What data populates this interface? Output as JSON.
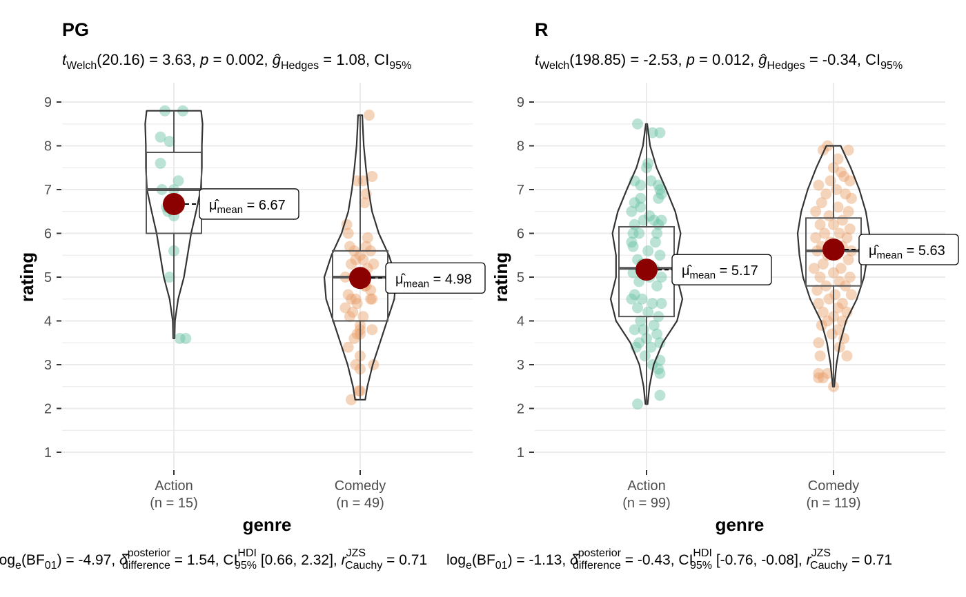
{
  "colors": {
    "action": "#66c2a5",
    "comedy": "#e8a06a",
    "mean": "#8b0000",
    "grid": "#ebebeb",
    "outline": "#333333"
  },
  "chart_data": [
    {
      "type": "violin-box-jitter",
      "title": "PG",
      "subtitle": {
        "stat": "Welch",
        "df": "(20.16) = 3.63, ",
        "p": " = 0.002, ",
        "g": "Hedges",
        "g_val": " = 1.08, CI",
        "ci": "95%"
      },
      "xlabel": "genre",
      "ylabel": "rating",
      "ylim": [
        1,
        9
      ],
      "yticks": [
        "1",
        "2",
        "3",
        "4",
        "5",
        "6",
        "7",
        "8",
        "9"
      ],
      "caption": {
        "lead": "log",
        "e": "e",
        "bf": "(BF",
        "bf_sub": "01",
        "bf_val": ") = -4.97, ",
        "post": "posterior",
        "diff": "difference",
        "d_val": " = 1.54, CI",
        "hdi": "HDI",
        "ci": "95%",
        "ci_val": " [0.66, 2.32], ",
        "r": "r",
        "jzs": "JZS",
        "cauchy": "Cauchy",
        "r_val": " = 0.71"
      },
      "categories": [
        "Action",
        "Comedy"
      ],
      "counts": [
        "(n = 15)",
        "(n = 49)"
      ],
      "series": [
        {
          "stats": {
            "min": 3.6,
            "q1": 6.0,
            "median": 7.0,
            "q3": 7.85,
            "max": 8.8,
            "mean": 6.67
          },
          "mean_label": " = 6.67",
          "violin": {
            "y": [
              3.6,
              4.0,
              4.5,
              5.0,
              5.5,
              6.0,
              6.5,
              7.0,
              7.5,
              8.0,
              8.5,
              8.8
            ],
            "w": [
              0.02,
              0.03,
              0.12,
              0.28,
              0.38,
              0.48,
              0.62,
              0.75,
              0.78,
              0.78,
              0.8,
              0.76
            ]
          },
          "points": [
            [
              -0.06,
              8.8
            ],
            [
              0.06,
              8.8
            ],
            [
              -0.09,
              8.2
            ],
            [
              -0.03,
              8.1
            ],
            [
              -0.09,
              7.6
            ],
            [
              0.03,
              7.2
            ],
            [
              -0.08,
              7.0
            ],
            [
              0.0,
              7.0
            ],
            [
              -0.05,
              6.6
            ],
            [
              -0.04,
              6.5
            ],
            [
              0.0,
              6.4
            ],
            [
              0.0,
              5.6
            ],
            [
              -0.03,
              5.0
            ],
            [
              0.04,
              3.6
            ],
            [
              0.08,
              3.6
            ]
          ]
        },
        {
          "stats": {
            "min": 2.2,
            "q1": 4.0,
            "median": 5.0,
            "q3": 5.6,
            "max": 8.7,
            "mean": 4.98
          },
          "mean_label": " = 4.98",
          "violin": {
            "y": [
              2.2,
              2.5,
              3.0,
              3.5,
              4.0,
              4.5,
              5.0,
              5.5,
              6.0,
              6.5,
              7.0,
              7.5,
              8.0,
              8.5,
              8.7
            ],
            "w": [
              0.14,
              0.2,
              0.35,
              0.55,
              0.75,
              0.95,
              1.0,
              0.8,
              0.52,
              0.33,
              0.23,
              0.16,
              0.1,
              0.07,
              0.06
            ]
          },
          "points": [
            [
              0.06,
              8.7
            ],
            [
              0.08,
              7.3
            ],
            [
              -0.02,
              7.2
            ],
            [
              0.02,
              7.2
            ],
            [
              0.04,
              6.9
            ],
            [
              0.03,
              6.7
            ],
            [
              -0.09,
              6.2
            ],
            [
              -0.08,
              6.0
            ],
            [
              0.05,
              5.9
            ],
            [
              -0.07,
              5.7
            ],
            [
              0.04,
              5.7
            ],
            [
              0.07,
              5.6
            ],
            [
              -0.04,
              5.6
            ],
            [
              0.0,
              5.5
            ],
            [
              -0.03,
              5.4
            ],
            [
              0.02,
              5.4
            ],
            [
              -0.06,
              5.3
            ],
            [
              0.05,
              5.2
            ],
            [
              0.09,
              5.3
            ],
            [
              -0.1,
              5.0
            ],
            [
              -0.05,
              5.0
            ],
            [
              -0.01,
              4.9
            ],
            [
              -0.08,
              4.6
            ],
            [
              0.03,
              4.8
            ],
            [
              0.07,
              4.7
            ],
            [
              -0.06,
              4.5
            ],
            [
              -0.03,
              4.5
            ],
            [
              0.07,
              4.5
            ],
            [
              0.08,
              4.5
            ],
            [
              -0.1,
              4.3
            ],
            [
              -0.07,
              4.1
            ],
            [
              -0.05,
              4.2
            ],
            [
              0.02,
              4.1
            ],
            [
              0.0,
              3.9
            ],
            [
              0.0,
              3.8
            ],
            [
              0.08,
              3.8
            ],
            [
              -0.02,
              3.7
            ],
            [
              0.0,
              3.7
            ],
            [
              -0.04,
              3.6
            ],
            [
              -0.08,
              3.4
            ],
            [
              0.0,
              3.2
            ],
            [
              -0.03,
              3.0
            ],
            [
              0.09,
              3.0
            ],
            [
              0.0,
              2.9
            ],
            [
              -0.01,
              2.4
            ],
            [
              0.0,
              2.4
            ],
            [
              -0.06,
              2.2
            ],
            [
              0.04,
              4.8
            ],
            [
              -0.02,
              4.4
            ]
          ]
        }
      ]
    },
    {
      "type": "violin-box-jitter",
      "title": "R",
      "subtitle": {
        "stat": "Welch",
        "df": "(198.85) = -2.53, ",
        "p": " = 0.012, ",
        "g": "Hedges",
        "g_val": " = -0.34, CI",
        "ci": "95%"
      },
      "xlabel": "genre",
      "ylabel": "rating",
      "ylim": [
        1,
        9
      ],
      "yticks": [
        "1",
        "2",
        "3",
        "4",
        "5",
        "6",
        "7",
        "8",
        "9"
      ],
      "caption": {
        "lead": "log",
        "e": "e",
        "bf": "(BF",
        "bf_sub": "01",
        "bf_val": ") = -1.13, ",
        "post": "posterior",
        "diff": "difference",
        "d_val": " = -0.43, CI",
        "hdi": "HDI",
        "ci": "95%",
        "ci_val": " [-0.76, -0.08], ",
        "r": "r",
        "jzs": "JZS",
        "cauchy": "Cauchy",
        "r_val": " = 0.71"
      },
      "categories": [
        "Action",
        "Comedy"
      ],
      "counts": [
        "(n = 99)",
        "(n = 119)"
      ],
      "series": [
        {
          "stats": {
            "min": 2.1,
            "q1": 4.1,
            "median": 5.2,
            "q3": 6.15,
            "max": 8.5,
            "mean": 5.17
          },
          "mean_label": " = 5.17",
          "violin": {
            "y": [
              2.1,
              2.5,
              3.0,
              3.5,
              4.0,
              4.5,
              5.0,
              5.5,
              6.0,
              6.5,
              7.0,
              7.5,
              8.0,
              8.5
            ],
            "w": [
              0.03,
              0.08,
              0.2,
              0.45,
              0.85,
              1.0,
              0.85,
              0.85,
              0.95,
              0.8,
              0.55,
              0.28,
              0.1,
              0.02
            ]
          },
          "points": [
            [
              -0.06,
              8.5
            ],
            [
              0.04,
              8.3
            ],
            [
              0.09,
              8.3
            ],
            [
              0.01,
              7.6
            ],
            [
              0.0,
              7.5
            ],
            [
              -0.08,
              7.2
            ],
            [
              -0.04,
              7.1
            ],
            [
              0.08,
              7.1
            ],
            [
              0.09,
              7.0
            ],
            [
              0.1,
              6.9
            ],
            [
              0.08,
              6.8
            ],
            [
              -0.08,
              6.7
            ],
            [
              -0.04,
              6.6
            ],
            [
              0.02,
              6.4
            ],
            [
              -0.1,
              6.5
            ],
            [
              0.05,
              6.3
            ],
            [
              0.08,
              6.2
            ],
            [
              -0.02,
              6.3
            ],
            [
              -0.08,
              6.2
            ],
            [
              0.1,
              6.3
            ],
            [
              -0.05,
              6.0
            ],
            [
              0.07,
              6.0
            ],
            [
              -0.1,
              5.8
            ],
            [
              0.01,
              5.6
            ],
            [
              -0.09,
              5.7
            ],
            [
              -0.06,
              5.4
            ],
            [
              0.09,
              5.5
            ],
            [
              -0.03,
              5.3
            ],
            [
              0.05,
              5.2
            ],
            [
              -0.09,
              5.1
            ],
            [
              0.02,
              5.0
            ],
            [
              0.1,
              5.0
            ],
            [
              -0.05,
              4.9
            ],
            [
              0.07,
              4.8
            ],
            [
              -0.08,
              4.6
            ],
            [
              -0.03,
              4.5
            ],
            [
              0.04,
              4.4
            ],
            [
              0.1,
              4.4
            ],
            [
              -0.1,
              4.5
            ],
            [
              -0.06,
              4.3
            ],
            [
              0.01,
              4.2
            ],
            [
              0.08,
              4.1
            ],
            [
              -0.04,
              4.0
            ],
            [
              0.05,
              3.9
            ],
            [
              -0.08,
              3.8
            ],
            [
              -0.02,
              3.8
            ],
            [
              0.07,
              3.7
            ],
            [
              0.0,
              3.6
            ],
            [
              -0.05,
              3.5
            ],
            [
              0.09,
              3.5
            ],
            [
              -0.07,
              3.4
            ],
            [
              0.03,
              3.4
            ],
            [
              -0.01,
              3.2
            ],
            [
              0.09,
              3.1
            ],
            [
              0.04,
              3.0
            ],
            [
              0.08,
              2.9
            ],
            [
              0.09,
              2.8
            ],
            [
              0.09,
              2.3
            ],
            [
              -0.06,
              2.1
            ],
            [
              -0.09,
              6.0
            ],
            [
              0.06,
              5.8
            ],
            [
              -0.04,
              6.8
            ],
            [
              0.03,
              7.2
            ]
          ]
        },
        {
          "stats": {
            "min": 2.5,
            "q1": 4.8,
            "median": 5.6,
            "q3": 6.35,
            "max": 8.0,
            "mean": 5.63
          },
          "mean_label": " = 5.63",
          "violin": {
            "y": [
              2.5,
              3.0,
              3.5,
              4.0,
              4.5,
              5.0,
              5.5,
              6.0,
              6.5,
              7.0,
              7.5,
              8.0
            ],
            "w": [
              0.02,
              0.08,
              0.18,
              0.35,
              0.65,
              0.85,
              0.95,
              1.0,
              0.9,
              0.72,
              0.48,
              0.2
            ]
          },
          "points": [
            [
              -0.07,
              7.9
            ],
            [
              -0.04,
              8.0
            ],
            [
              0.1,
              7.9
            ],
            [
              0.03,
              7.7
            ],
            [
              0.0,
              7.5
            ],
            [
              0.05,
              7.4
            ],
            [
              0.07,
              7.3
            ],
            [
              -0.02,
              7.2
            ],
            [
              0.11,
              7.2
            ],
            [
              -0.1,
              7.1
            ],
            [
              0.02,
              7.0
            ],
            [
              -0.05,
              6.9
            ],
            [
              0.08,
              6.9
            ],
            [
              0.12,
              6.8
            ],
            [
              -0.08,
              6.7
            ],
            [
              0.03,
              6.6
            ],
            [
              -0.12,
              6.5
            ],
            [
              0.1,
              6.5
            ],
            [
              -0.03,
              6.4
            ],
            [
              0.06,
              6.3
            ],
            [
              -0.09,
              6.2
            ],
            [
              0.0,
              6.2
            ],
            [
              0.11,
              6.1
            ],
            [
              -0.06,
              6.0
            ],
            [
              0.04,
              6.0
            ],
            [
              -0.12,
              5.9
            ],
            [
              0.09,
              5.9
            ],
            [
              -0.02,
              5.8
            ],
            [
              -0.08,
              5.7
            ],
            [
              0.06,
              5.7
            ],
            [
              0.12,
              5.6
            ],
            [
              -0.11,
              5.6
            ],
            [
              -0.04,
              5.5
            ],
            [
              0.02,
              5.5
            ],
            [
              0.1,
              5.4
            ],
            [
              -0.07,
              5.3
            ],
            [
              0.05,
              5.2
            ],
            [
              -0.13,
              5.2
            ],
            [
              0.0,
              5.1
            ],
            [
              0.11,
              5.0
            ],
            [
              -0.09,
              5.0
            ],
            [
              0.04,
              4.9
            ],
            [
              -0.05,
              4.8
            ],
            [
              0.08,
              4.8
            ],
            [
              -0.11,
              4.7
            ],
            [
              0.01,
              4.6
            ],
            [
              0.12,
              4.6
            ],
            [
              -0.03,
              4.5
            ],
            [
              0.06,
              4.4
            ],
            [
              -0.1,
              4.4
            ],
            [
              0.03,
              4.3
            ],
            [
              -0.07,
              4.2
            ],
            [
              0.09,
              4.2
            ],
            [
              0.0,
              4.1
            ],
            [
              -0.04,
              4.0
            ],
            [
              0.06,
              4.0
            ],
            [
              -0.08,
              3.9
            ],
            [
              0.03,
              3.8
            ],
            [
              -0.01,
              3.7
            ],
            [
              0.07,
              3.6
            ],
            [
              -0.1,
              3.5
            ],
            [
              0.04,
              3.4
            ],
            [
              0.09,
              3.2
            ],
            [
              -0.09,
              3.2
            ],
            [
              -0.1,
              2.8
            ],
            [
              -0.07,
              2.7
            ],
            [
              -0.04,
              2.8
            ],
            [
              -0.1,
              2.7
            ],
            [
              0.0,
              2.5
            ]
          ]
        }
      ]
    }
  ]
}
